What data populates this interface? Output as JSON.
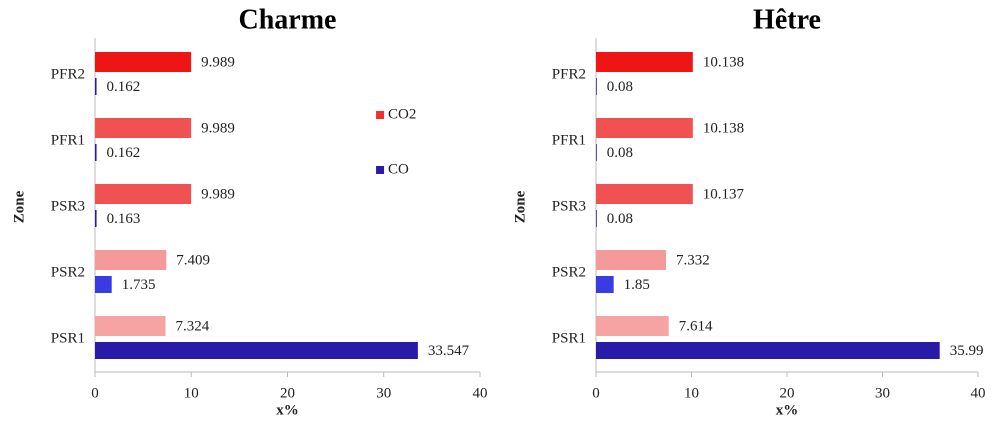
{
  "chart_data": [
    {
      "type": "barh",
      "title": "Charme",
      "xlabel": "x%",
      "ylabel": "Zone",
      "categories": [
        "PSR1",
        "PSR2",
        "PSR3",
        "PFR1",
        "PFR2"
      ],
      "series": [
        {
          "name": "CO2",
          "color": "#ee3030",
          "colors": [
            "#f6a3a3",
            "#f59a9a",
            "#f05252",
            "#f05252",
            "#ee1515"
          ],
          "values": [
            7.324,
            7.409,
            9.989,
            9.989,
            9.989
          ]
        },
        {
          "name": "CO",
          "color": "#2a1aa8",
          "colors": [
            "#2a1aa8",
            "#3b3be6",
            "#2a1aa8",
            "#2a1aa8",
            "#2a1aa8"
          ],
          "values": [
            33.547,
            1.735,
            0.163,
            0.162,
            0.162
          ]
        }
      ],
      "xlim": [
        0,
        40
      ],
      "xticks": [
        0,
        10,
        20,
        30,
        40
      ],
      "legend": "center right"
    },
    {
      "type": "barh",
      "title": "Hêtre",
      "xlabel": "x%",
      "ylabel": "Zone",
      "categories": [
        "PSR1",
        "PSR2",
        "PSR3",
        "PFR1",
        "PFR2"
      ],
      "series": [
        {
          "name": "CO2",
          "color": "#ee3030",
          "colors": [
            "#f6a3a3",
            "#f59a9a",
            "#f05252",
            "#f05252",
            "#ee1515"
          ],
          "values": [
            7.614,
            7.332,
            10.137,
            10.138,
            10.138
          ]
        },
        {
          "name": "CO",
          "color": "#2a1aa8",
          "colors": [
            "#2a1aa8",
            "#3b3be6",
            "#2a1aa8",
            "#2a1aa8",
            "#2a1aa8"
          ],
          "values": [
            35.99,
            1.85,
            0.08,
            0.08,
            0.08
          ]
        }
      ],
      "xlim": [
        0,
        40
      ],
      "xticks": [
        0,
        10,
        20,
        30,
        40
      ],
      "legend": false
    }
  ]
}
